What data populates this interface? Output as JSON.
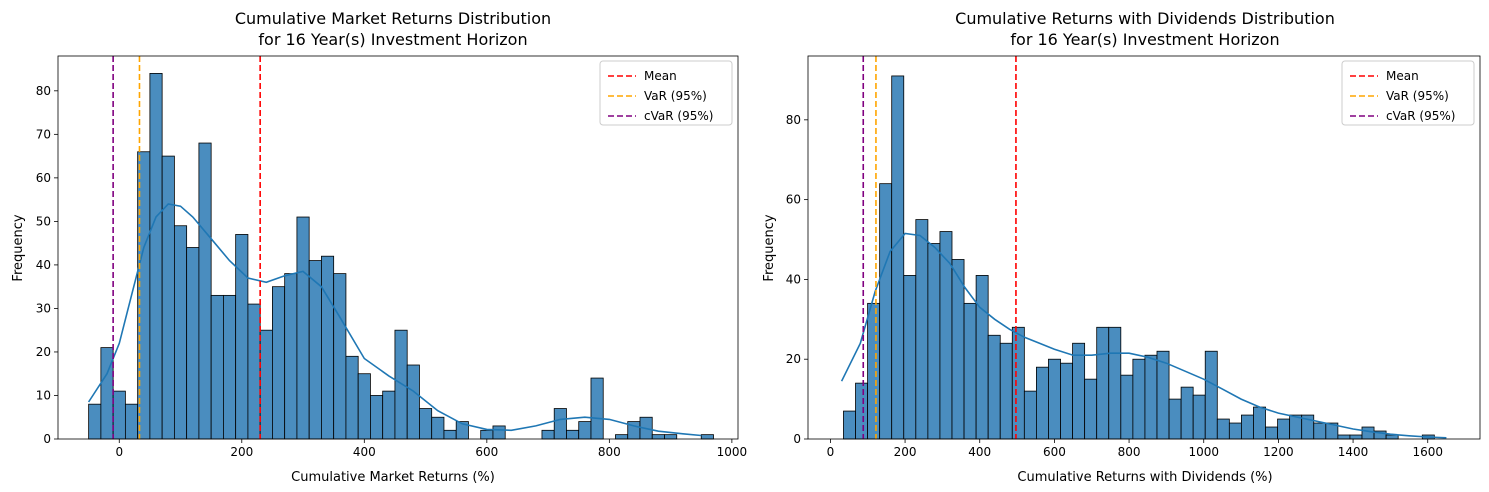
{
  "chart_data": [
    {
      "type": "histogram",
      "title_lines": [
        "Cumulative Market Returns Distribution",
        "for 16 Year(s) Investment Horizon"
      ],
      "xlabel": "Cumulative Market Returns (%)",
      "ylabel": "Frequency",
      "xlim": [
        -100,
        1010
      ],
      "ylim": [
        0,
        88
      ],
      "x_ticks": [
        0,
        200,
        400,
        600,
        800,
        1000
      ],
      "y_ticks": [
        0,
        10,
        20,
        30,
        40,
        50,
        60,
        70,
        80
      ],
      "bins": {
        "start": -50,
        "width": 20,
        "counts": [
          8,
          21,
          11,
          8,
          66,
          84,
          65,
          49,
          44,
          68,
          33,
          33,
          47,
          31,
          25,
          35,
          38,
          51,
          41,
          42,
          38,
          19,
          15,
          10,
          11,
          25,
          17,
          7,
          5,
          2,
          4,
          0,
          2,
          3,
          0,
          0,
          0,
          2,
          7,
          2,
          4,
          14,
          0,
          1,
          4,
          5,
          1,
          1,
          0,
          0,
          1
        ]
      },
      "kde": {
        "x": [
          -50,
          -20,
          0,
          20,
          40,
          60,
          80,
          100,
          120,
          150,
          180,
          210,
          240,
          270,
          300,
          330,
          360,
          400,
          440,
          480,
          520,
          560,
          600,
          640,
          680,
          720,
          760,
          800,
          840,
          880,
          920,
          950
        ],
        "y": [
          8.5,
          15,
          22,
          33,
          44,
          51,
          54,
          53.5,
          51,
          46,
          41,
          37,
          36,
          37.5,
          38.5,
          35,
          28,
          18.5,
          14.5,
          11,
          6.5,
          3.5,
          2.2,
          2,
          3,
          4.5,
          5,
          4.5,
          3,
          1.8,
          1.2,
          0.8
        ]
      },
      "vlines": [
        {
          "label": "Mean",
          "x": 230,
          "color": "#ff0000"
        },
        {
          "label": "VaR (95%)",
          "x": 33,
          "color": "#ffa500"
        },
        {
          "label": "cVaR (95%)",
          "x": -10,
          "color": "#800080"
        }
      ],
      "legend_position": "upper right",
      "bar_color": "#4a8dbf",
      "kde_color": "#1f77b4"
    },
    {
      "type": "histogram",
      "title_lines": [
        "Cumulative Returns with Dividends Distribution",
        "for 16 Year(s) Investment Horizon"
      ],
      "xlabel": "Cumulative Returns with Dividends (%)",
      "ylabel": "Frequency",
      "xlim": [
        -60,
        1740
      ],
      "ylim": [
        0,
        96
      ],
      "x_ticks": [
        0,
        200,
        400,
        600,
        800,
        1000,
        1200,
        1400,
        1600
      ],
      "y_ticks": [
        0,
        20,
        40,
        60,
        80
      ],
      "bins": {
        "start": 35,
        "width": 32.3,
        "counts": [
          7,
          14,
          34,
          64,
          91,
          41,
          55,
          49,
          52,
          45,
          34,
          41,
          26,
          24,
          28,
          12,
          18,
          20,
          19,
          24,
          15,
          28,
          28,
          16,
          20,
          21,
          22,
          10,
          13,
          11,
          22,
          5,
          4,
          6,
          8,
          3,
          5,
          6,
          6,
          4,
          4,
          1,
          1,
          3,
          2,
          1,
          0,
          0,
          1
        ]
      },
      "kde": {
        "x": [
          30,
          80,
          120,
          160,
          200,
          240,
          280,
          320,
          360,
          400,
          440,
          480,
          520,
          560,
          600,
          650,
          700,
          750,
          800,
          850,
          900,
          950,
          1000,
          1050,
          1100,
          1150,
          1200,
          1250,
          1300,
          1350,
          1400,
          1450,
          1500,
          1550,
          1600,
          1650
        ],
        "y": [
          14.5,
          24,
          37,
          47,
          51.5,
          51,
          48,
          44,
          38,
          33,
          30,
          27.5,
          25.5,
          24,
          22.5,
          21,
          21,
          21.5,
          21.5,
          20.5,
          19,
          17,
          15,
          12.5,
          10,
          8,
          6.5,
          5.5,
          4.5,
          3.5,
          2.5,
          1.8,
          1.2,
          0.8,
          0.5,
          0.3
        ]
      },
      "vlines": [
        {
          "label": "Mean",
          "x": 497,
          "color": "#ff0000"
        },
        {
          "label": "VaR (95%)",
          "x": 122,
          "color": "#ffa500"
        },
        {
          "label": "cVaR (95%)",
          "x": 88,
          "color": "#800080"
        }
      ],
      "legend_position": "upper right",
      "bar_color": "#4a8dbf",
      "kde_color": "#1f77b4"
    }
  ]
}
